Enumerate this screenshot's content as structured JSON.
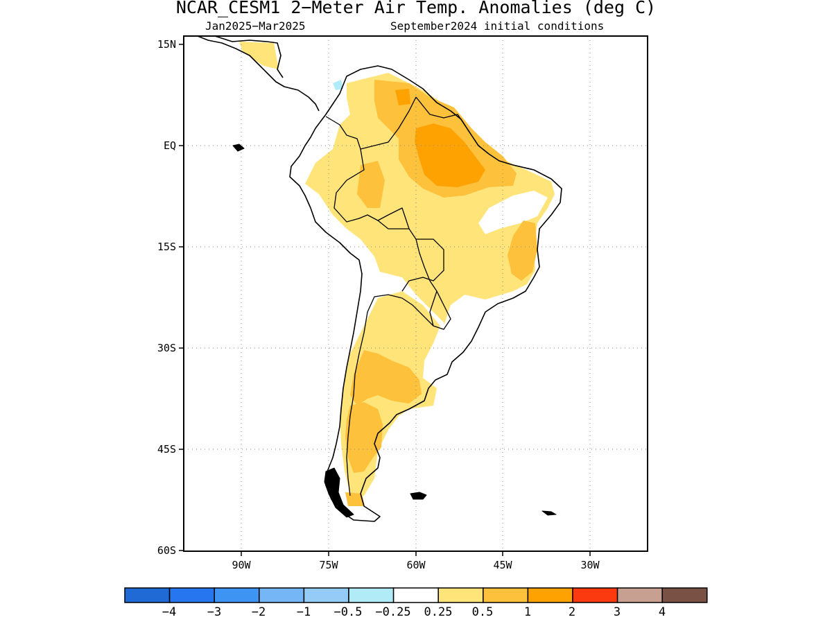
{
  "header": {
    "title": "NCAR_CESM1 2−Meter Air Temp. Anomalies (deg C)",
    "subtitle_left": "Jan2025−Mar2025",
    "subtitle_right": "September2024 initial conditions"
  },
  "map": {
    "region": "South America",
    "lon_range": [
      -98,
      -18
    ],
    "lat_range": [
      -60,
      15
    ],
    "lat_ticks": [
      {
        "value": 15,
        "label": "15N"
      },
      {
        "value": 0,
        "label": "EQ"
      },
      {
        "value": -15,
        "label": "15S"
      },
      {
        "value": -30,
        "label": "30S"
      },
      {
        "value": -45,
        "label": "45S"
      },
      {
        "value": -60,
        "label": "60S"
      }
    ],
    "lon_ticks": [
      {
        "value": -90,
        "label": "90W"
      },
      {
        "value": -75,
        "label": "75W"
      },
      {
        "value": -60,
        "label": "60W"
      },
      {
        "value": -45,
        "label": "45W"
      },
      {
        "value": -30,
        "label": "30W"
      }
    ],
    "grid": "dotted",
    "anomaly_regions": [
      {
        "name": "northern-south-america",
        "level": "0.25-0.5"
      },
      {
        "name": "central-amazon",
        "level": "0.5-1"
      },
      {
        "name": "northeast-amazon",
        "level": "1-2"
      },
      {
        "name": "eastern-brazil",
        "level": "0.5-1"
      },
      {
        "name": "northern-argentina",
        "level": "0.25-0.5"
      },
      {
        "name": "central-argentina",
        "level": "0.5-1"
      },
      {
        "name": "patagonia",
        "level": "0.5-1"
      }
    ]
  },
  "colorbar": {
    "colors": [
      "#1f6ad4",
      "#2676f0",
      "#3d94f2",
      "#75b6f7",
      "#94ccf7",
      "#b1ebf7",
      "#ffffff",
      "#ffe47a",
      "#fec13c",
      "#fea202",
      "#fc3a10",
      "#c8a092",
      "#7a5145"
    ],
    "labels": [
      "−4",
      "−3",
      "−2",
      "−1",
      "−0.5",
      "−0.25",
      "0.25",
      "0.5",
      "1",
      "2",
      "3",
      "4"
    ]
  }
}
